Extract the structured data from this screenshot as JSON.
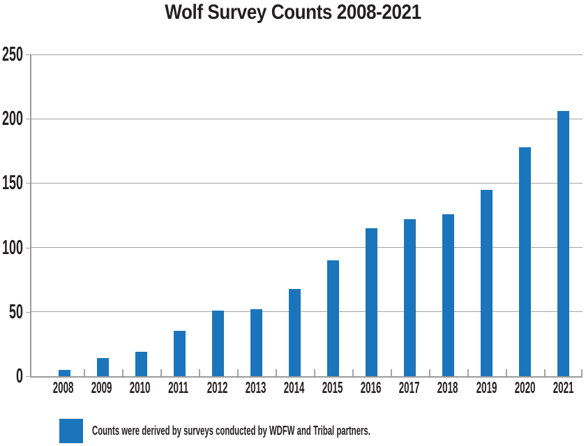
{
  "title": "Wolf Survey Counts 2008-2021",
  "legend": {
    "text": "Counts were derived by surveys conducted by WDFW and Tribal partners."
  },
  "colors": {
    "bar": "#1b75bc",
    "grid": "#a4a4a4",
    "axis": "#9b9b9b",
    "text": "#231f20",
    "background": "#ffffff"
  },
  "chart_data": {
    "type": "bar",
    "title": "Wolf Survey Counts 2008-2021",
    "categories": [
      "2008",
      "2009",
      "2010",
      "2011",
      "2012",
      "2013",
      "2014",
      "2015",
      "2016",
      "2017",
      "2018",
      "2019",
      "2020",
      "2021"
    ],
    "values": [
      5,
      14,
      19,
      35,
      51,
      52,
      68,
      90,
      115,
      122,
      126,
      145,
      178,
      206
    ],
    "xlabel": "",
    "ylabel": "",
    "ylim": [
      0,
      250
    ],
    "yticks": [
      0,
      50,
      100,
      150,
      200,
      250
    ],
    "grid": "horizontal",
    "legend_position": "bottom-left",
    "legend_label": "Counts were derived by surveys conducted by WDFW and Tribal partners."
  }
}
